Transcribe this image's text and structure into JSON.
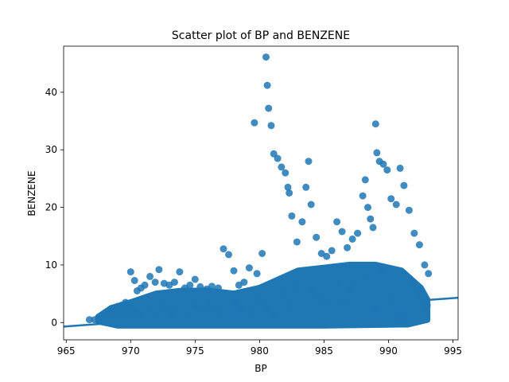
{
  "chart_data": {
    "type": "scatter",
    "title": "Scatter plot of BP and BENZENE",
    "xlabel": "BP",
    "ylabel": "BENZENE",
    "xlim": [
      964.8,
      995.4
    ],
    "ylim": [
      -3,
      48
    ],
    "xticks": [
      965,
      970,
      975,
      980,
      985,
      990,
      995
    ],
    "yticks": [
      0,
      10,
      20,
      30,
      40
    ],
    "grid": false,
    "legend": "none",
    "point_color": "#1f77b4",
    "series": [
      {
        "x": [
          966.8,
          967.2,
          967.6,
          968.0,
          968.3,
          968.6,
          969.0,
          969.3,
          969.6,
          970.0,
          970.3,
          970.5,
          970.8,
          971.1,
          971.5,
          971.9,
          972.2,
          972.6,
          973.0,
          973.4,
          973.8,
          974.2,
          974.6,
          975.0,
          975.4,
          975.9,
          976.3,
          976.8,
          977.2,
          977.6,
          978.0,
          978.4,
          978.8,
          979.2,
          979.6,
          979.8,
          980.2,
          980.5,
          980.6,
          980.7,
          980.9,
          981.1,
          981.4,
          981.7,
          982.0,
          982.2,
          982.3,
          982.5,
          982.9,
          983.3,
          983.6,
          983.8,
          984.0,
          984.4,
          984.8,
          985.2,
          985.6,
          986.0,
          986.4,
          986.8,
          987.2,
          987.6,
          988.0,
          988.2,
          988.4,
          988.6,
          988.8,
          989.0,
          989.1,
          989.3,
          989.6,
          989.9,
          990.2,
          990.6,
          990.9,
          991.2,
          991.6,
          992.0,
          992.4,
          992.8,
          993.1
        ],
        "y": [
          0.5,
          0.5,
          0.6,
          1.6,
          1.8,
          2.2,
          2.8,
          3.0,
          3.5,
          8.8,
          7.3,
          5.5,
          6.0,
          6.5,
          8.0,
          7.0,
          9.2,
          6.8,
          6.5,
          7.0,
          8.8,
          6.0,
          6.5,
          7.5,
          6.2,
          5.8,
          6.3,
          6.0,
          12.8,
          11.8,
          9.0,
          6.5,
          7.0,
          9.5,
          34.7,
          8.5,
          12.0,
          46.1,
          41.2,
          37.2,
          34.2,
          29.3,
          28.5,
          27.0,
          26.0,
          23.5,
          22.5,
          18.5,
          14.0,
          17.5,
          23.5,
          28.0,
          20.5,
          14.8,
          12.0,
          11.5,
          12.5,
          17.5,
          15.8,
          13.0,
          14.5,
          15.5,
          22.0,
          24.8,
          20.0,
          18.0,
          16.5,
          34.5,
          29.5,
          28.0,
          27.5,
          26.5,
          21.5,
          20.5,
          26.8,
          23.8,
          19.5,
          15.5,
          13.5,
          10.0,
          8.5
        ]
      },
      {
        "x": [
          967.6,
          968.5,
          969.2,
          969.8,
          970.3,
          970.8,
          971.4,
          972.0,
          972.6,
          973.2,
          973.9,
          974.5,
          975.1,
          975.7,
          976.3,
          976.9,
          977.5,
          978.1,
          978.7,
          979.3,
          979.9,
          980.5,
          981.1,
          981.7,
          982.3,
          982.9,
          983.5,
          984.1,
          984.7,
          985.3,
          985.9,
          986.5,
          987.1,
          987.7,
          988.3,
          988.9,
          989.5,
          990.1,
          990.7,
          991.3,
          991.9,
          992.5,
          993.0
        ],
        "y": [
          0.8,
          1.2,
          0.6,
          1.5,
          2.0,
          1.0,
          2.5,
          1.4,
          3.0,
          1.8,
          2.2,
          1.1,
          2.8,
          1.6,
          3.2,
          2.0,
          1.3,
          3.5,
          2.4,
          1.7,
          4.0,
          2.6,
          1.5,
          5.0,
          3.0,
          6.5,
          2.2,
          5.5,
          4.0,
          3.0,
          7.0,
          2.8,
          6.0,
          3.5,
          8.0,
          2.5,
          9.0,
          4.0,
          1.0,
          0.5,
          6.5,
          5.0,
          3.0
        ]
      }
    ],
    "regression_line": {
      "x": [
        964.8,
        995.4
      ],
      "y": [
        -0.7,
        4.3
      ]
    }
  }
}
